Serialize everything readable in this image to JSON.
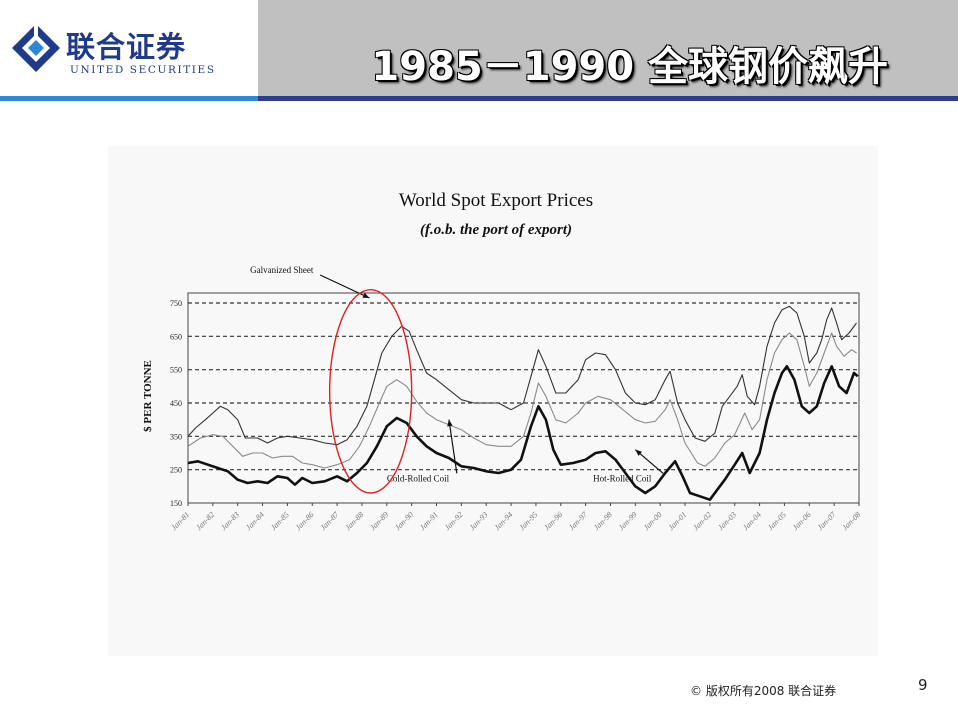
{
  "header": {
    "logo_cn": "联合证券",
    "logo_en": "UNITED SECURITIES",
    "title": "1985－1990 全球钢价飙升"
  },
  "footer": {
    "copyright": "© 版权所有2008  联合证券",
    "page_number": "9"
  },
  "colors": {
    "title_bar": "#c0c0c0",
    "rule_left": "#2f88d6",
    "rule_right": "#2e3d8f",
    "logo": "#1f3a8a",
    "highlight_ellipse": "#e02020"
  },
  "chart_data": {
    "type": "line",
    "title": "World Spot Export Prices",
    "subtitle": "(f.o.b. the port of export)",
    "ylabel": "$ PER TONNE",
    "xlabel": "",
    "ylim": [
      150,
      780
    ],
    "yticks": [
      150,
      250,
      350,
      450,
      550,
      650,
      750
    ],
    "ytick_labels": [
      "150",
      "250",
      "350",
      "450",
      "550",
      "650",
      "750"
    ],
    "xlim": [
      1981.0,
      2008.0
    ],
    "xticks": [
      1981,
      1982,
      1983,
      1984,
      1985,
      1986,
      1987,
      1988,
      1989,
      1990,
      1991,
      1992,
      1993,
      1994,
      1995,
      1996,
      1997,
      1998,
      1999,
      2000,
      2001,
      2002,
      2003,
      2004,
      2005,
      2006,
      2007,
      2008
    ],
    "xtick_labels": [
      "Jan-81",
      "Jan-82",
      "Jan-83",
      "Jan-84",
      "Jan-85",
      "Jan-86",
      "Jan-87",
      "Jan-88",
      "Jan-89",
      "Jan-90",
      "Jan-91",
      "Jan-92",
      "Jan-93",
      "Jan-94",
      "Jan-95",
      "Jan-96",
      "Jan-97",
      "Jan-98",
      "Jan-99",
      "Jan-00",
      "Jan-01",
      "Jan-02",
      "Jan-03",
      "Jan-04",
      "Jan-05",
      "Jan-06",
      "Jan-07",
      "Jan-08"
    ],
    "grid": "dashed-horizontal",
    "highlight": {
      "x_range": [
        1986.7,
        1990.0
      ],
      "y_range": [
        180,
        790
      ]
    },
    "annotations": [
      {
        "text": "Galvanized Sheet",
        "series": 0,
        "at_x": 1988.3,
        "at_y": 765,
        "label_x": 1983.5,
        "label_y": 840
      },
      {
        "text": "Cold-Rolled Coil",
        "series": 1,
        "at_x": 1991.5,
        "at_y": 400,
        "label_x": 1989.0,
        "label_y": 215
      },
      {
        "text": "Hot-Rolled Coil",
        "series": 2,
        "at_x": 1999.0,
        "at_y": 310,
        "label_x": 1997.3,
        "label_y": 215
      }
    ],
    "series": [
      {
        "name": "Galvanized Sheet",
        "color": "#333333",
        "width": 1.1,
        "points": [
          [
            1981.0,
            350
          ],
          [
            1981.3,
            375
          ],
          [
            1981.7,
            400
          ],
          [
            1982.0,
            420
          ],
          [
            1982.3,
            440
          ],
          [
            1982.6,
            430
          ],
          [
            1983.0,
            400
          ],
          [
            1983.3,
            345
          ],
          [
            1983.8,
            345
          ],
          [
            1984.2,
            330
          ],
          [
            1984.6,
            345
          ],
          [
            1985.0,
            350
          ],
          [
            1985.5,
            345
          ],
          [
            1986.0,
            340
          ],
          [
            1986.5,
            330
          ],
          [
            1987.0,
            325
          ],
          [
            1987.4,
            340
          ],
          [
            1987.8,
            380
          ],
          [
            1988.2,
            440
          ],
          [
            1988.5,
            520
          ],
          [
            1988.8,
            600
          ],
          [
            1989.2,
            650
          ],
          [
            1989.6,
            680
          ],
          [
            1989.9,
            665
          ],
          [
            1990.2,
            610
          ],
          [
            1990.6,
            540
          ],
          [
            1991.0,
            520
          ],
          [
            1991.5,
            490
          ],
          [
            1992.0,
            460
          ],
          [
            1992.5,
            450
          ],
          [
            1993.0,
            450
          ],
          [
            1993.5,
            450
          ],
          [
            1994.0,
            430
          ],
          [
            1994.5,
            450
          ],
          [
            1994.8,
            530
          ],
          [
            1995.1,
            610
          ],
          [
            1995.4,
            560
          ],
          [
            1995.8,
            480
          ],
          [
            1996.2,
            480
          ],
          [
            1996.7,
            520
          ],
          [
            1997.0,
            580
          ],
          [
            1997.4,
            600
          ],
          [
            1997.8,
            595
          ],
          [
            1998.2,
            550
          ],
          [
            1998.6,
            480
          ],
          [
            1999.0,
            450
          ],
          [
            1999.4,
            445
          ],
          [
            1999.8,
            460
          ],
          [
            2000.2,
            520
          ],
          [
            2000.4,
            545
          ],
          [
            2000.7,
            450
          ],
          [
            2001.0,
            400
          ],
          [
            2001.4,
            345
          ],
          [
            2001.8,
            335
          ],
          [
            2002.2,
            360
          ],
          [
            2002.5,
            440
          ],
          [
            2002.8,
            470
          ],
          [
            2003.1,
            500
          ],
          [
            2003.3,
            535
          ],
          [
            2003.5,
            470
          ],
          [
            2003.8,
            445
          ],
          [
            2004.0,
            500
          ],
          [
            2004.3,
            620
          ],
          [
            2004.6,
            690
          ],
          [
            2004.9,
            730
          ],
          [
            2005.2,
            740
          ],
          [
            2005.5,
            720
          ],
          [
            2005.8,
            650
          ],
          [
            2006.0,
            570
          ],
          [
            2006.3,
            600
          ],
          [
            2006.5,
            640
          ],
          [
            2006.7,
            700
          ],
          [
            2006.9,
            735
          ],
          [
            2007.1,
            690
          ],
          [
            2007.3,
            640
          ],
          [
            2007.6,
            660
          ],
          [
            2007.9,
            690
          ]
        ]
      },
      {
        "name": "Cold-Rolled Coil",
        "color": "#8a8a8a",
        "width": 1.1,
        "points": [
          [
            1981.0,
            320
          ],
          [
            1981.5,
            345
          ],
          [
            1982.0,
            355
          ],
          [
            1982.4,
            350
          ],
          [
            1982.8,
            320
          ],
          [
            1983.2,
            290
          ],
          [
            1983.6,
            300
          ],
          [
            1984.0,
            300
          ],
          [
            1984.4,
            285
          ],
          [
            1984.8,
            290
          ],
          [
            1985.2,
            290
          ],
          [
            1985.6,
            270
          ],
          [
            1986.0,
            265
          ],
          [
            1986.5,
            255
          ],
          [
            1987.0,
            265
          ],
          [
            1987.5,
            280
          ],
          [
            1987.9,
            320
          ],
          [
            1988.3,
            380
          ],
          [
            1988.7,
            450
          ],
          [
            1989.0,
            500
          ],
          [
            1989.4,
            520
          ],
          [
            1989.8,
            500
          ],
          [
            1990.2,
            455
          ],
          [
            1990.6,
            420
          ],
          [
            1991.0,
            400
          ],
          [
            1991.5,
            385
          ],
          [
            1992.0,
            370
          ],
          [
            1992.5,
            345
          ],
          [
            1993.0,
            325
          ],
          [
            1993.5,
            320
          ],
          [
            1994.0,
            320
          ],
          [
            1994.5,
            350
          ],
          [
            1994.8,
            420
          ],
          [
            1995.1,
            510
          ],
          [
            1995.4,
            470
          ],
          [
            1995.8,
            400
          ],
          [
            1996.2,
            390
          ],
          [
            1996.7,
            420
          ],
          [
            1997.0,
            450
          ],
          [
            1997.5,
            470
          ],
          [
            1998.0,
            460
          ],
          [
            1998.5,
            430
          ],
          [
            1999.0,
            400
          ],
          [
            1999.4,
            390
          ],
          [
            1999.8,
            395
          ],
          [
            2000.2,
            430
          ],
          [
            2000.4,
            460
          ],
          [
            2000.7,
            400
          ],
          [
            2001.0,
            330
          ],
          [
            2001.5,
            270
          ],
          [
            2001.8,
            260
          ],
          [
            2002.2,
            285
          ],
          [
            2002.6,
            330
          ],
          [
            2003.0,
            355
          ],
          [
            2003.4,
            420
          ],
          [
            2003.7,
            370
          ],
          [
            2004.0,
            400
          ],
          [
            2004.3,
            520
          ],
          [
            2004.6,
            600
          ],
          [
            2004.9,
            640
          ],
          [
            2005.2,
            660
          ],
          [
            2005.5,
            640
          ],
          [
            2005.8,
            560
          ],
          [
            2006.0,
            500
          ],
          [
            2006.3,
            540
          ],
          [
            2006.6,
            600
          ],
          [
            2006.9,
            660
          ],
          [
            2007.1,
            620
          ],
          [
            2007.4,
            590
          ],
          [
            2007.7,
            610
          ],
          [
            2007.9,
            600
          ]
        ]
      },
      {
        "name": "Hot-Rolled Coil",
        "color": "#111111",
        "width": 2.6,
        "points": [
          [
            1981.0,
            270
          ],
          [
            1981.4,
            275
          ],
          [
            1981.8,
            265
          ],
          [
            1982.2,
            255
          ],
          [
            1982.6,
            245
          ],
          [
            1983.0,
            220
          ],
          [
            1983.4,
            210
          ],
          [
            1983.8,
            215
          ],
          [
            1984.2,
            210
          ],
          [
            1984.6,
            230
          ],
          [
            1985.0,
            225
          ],
          [
            1985.3,
            205
          ],
          [
            1985.6,
            225
          ],
          [
            1986.0,
            210
          ],
          [
            1986.5,
            215
          ],
          [
            1987.0,
            230
          ],
          [
            1987.4,
            215
          ],
          [
            1987.8,
            240
          ],
          [
            1988.2,
            270
          ],
          [
            1988.6,
            320
          ],
          [
            1989.0,
            380
          ],
          [
            1989.4,
            405
          ],
          [
            1989.8,
            390
          ],
          [
            1990.2,
            350
          ],
          [
            1990.6,
            320
          ],
          [
            1991.0,
            300
          ],
          [
            1991.5,
            285
          ],
          [
            1992.0,
            260
          ],
          [
            1992.5,
            255
          ],
          [
            1993.0,
            245
          ],
          [
            1993.5,
            240
          ],
          [
            1994.0,
            250
          ],
          [
            1994.4,
            280
          ],
          [
            1994.8,
            380
          ],
          [
            1995.1,
            440
          ],
          [
            1995.4,
            400
          ],
          [
            1995.7,
            310
          ],
          [
            1996.0,
            265
          ],
          [
            1996.5,
            270
          ],
          [
            1997.0,
            280
          ],
          [
            1997.4,
            300
          ],
          [
            1997.8,
            305
          ],
          [
            1998.2,
            280
          ],
          [
            1998.6,
            240
          ],
          [
            1999.0,
            200
          ],
          [
            1999.4,
            180
          ],
          [
            1999.8,
            200
          ],
          [
            2000.2,
            240
          ],
          [
            2000.6,
            275
          ],
          [
            2000.9,
            230
          ],
          [
            2001.2,
            180
          ],
          [
            2001.6,
            170
          ],
          [
            2002.0,
            160
          ],
          [
            2002.3,
            190
          ],
          [
            2002.6,
            220
          ],
          [
            2003.0,
            265
          ],
          [
            2003.3,
            300
          ],
          [
            2003.6,
            240
          ],
          [
            2004.0,
            300
          ],
          [
            2004.3,
            400
          ],
          [
            2004.6,
            480
          ],
          [
            2004.9,
            540
          ],
          [
            2005.1,
            560
          ],
          [
            2005.4,
            520
          ],
          [
            2005.7,
            440
          ],
          [
            2006.0,
            420
          ],
          [
            2006.3,
            440
          ],
          [
            2006.6,
            510
          ],
          [
            2006.9,
            560
          ],
          [
            2007.2,
            500
          ],
          [
            2007.5,
            480
          ],
          [
            2007.8,
            540
          ],
          [
            2007.95,
            530
          ]
        ]
      }
    ]
  }
}
